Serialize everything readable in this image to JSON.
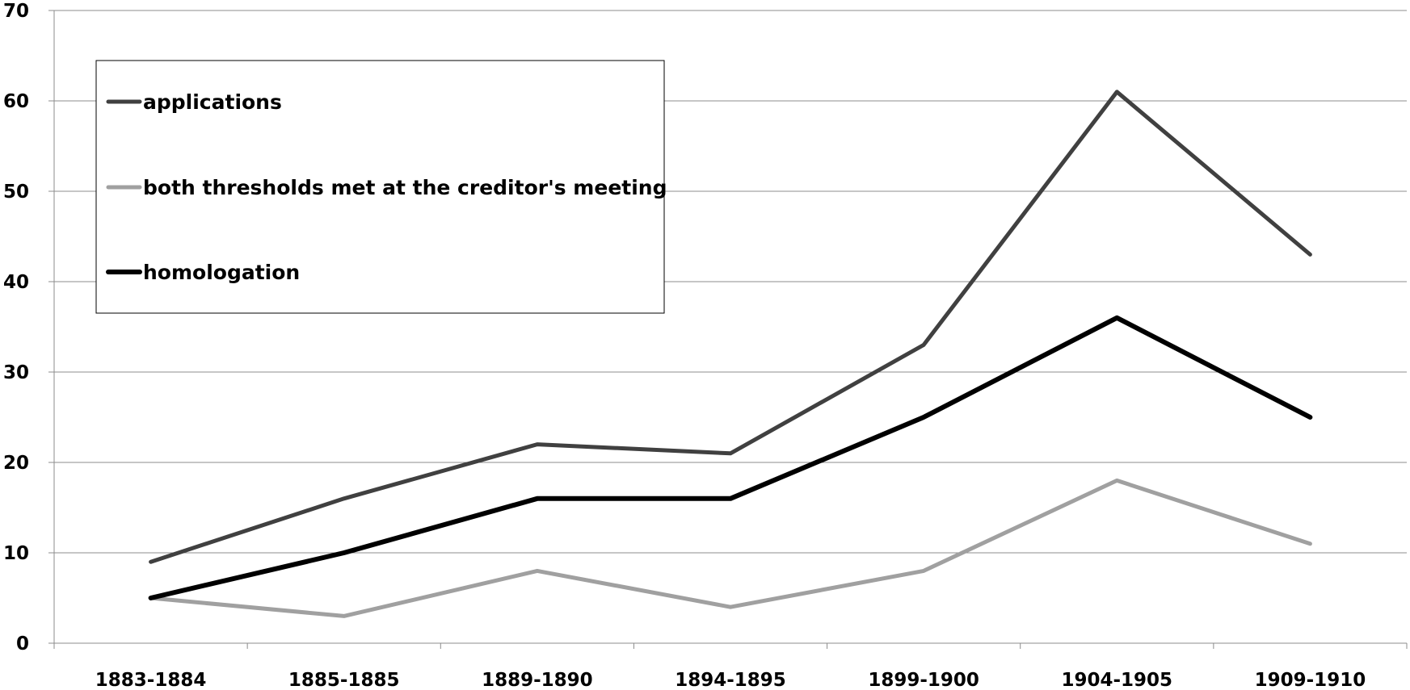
{
  "chart_data": {
    "type": "line",
    "title": "",
    "xlabel": "",
    "ylabel": "",
    "categories": [
      "1883-1884",
      "1885-1885",
      "1889-1890",
      "1894-1895",
      "1899-1900",
      "1904-1905",
      "1909-1910"
    ],
    "ylim": [
      0,
      70
    ],
    "yticks": [
      0,
      10,
      20,
      30,
      40,
      50,
      60,
      70
    ],
    "grid": true,
    "legend_position": "top-left",
    "series": [
      {
        "name": "applications",
        "color": "#404040",
        "values": [
          9,
          16,
          22,
          21,
          33,
          61,
          43
        ]
      },
      {
        "name": "both thresholds met at the creditor's meeting",
        "color": "#a0a0a0",
        "values": [
          5,
          3,
          8,
          4,
          8,
          18,
          11
        ]
      },
      {
        "name": "homologation",
        "color": "#000000",
        "values": [
          5,
          10,
          16,
          16,
          25,
          36,
          25
        ]
      }
    ]
  }
}
